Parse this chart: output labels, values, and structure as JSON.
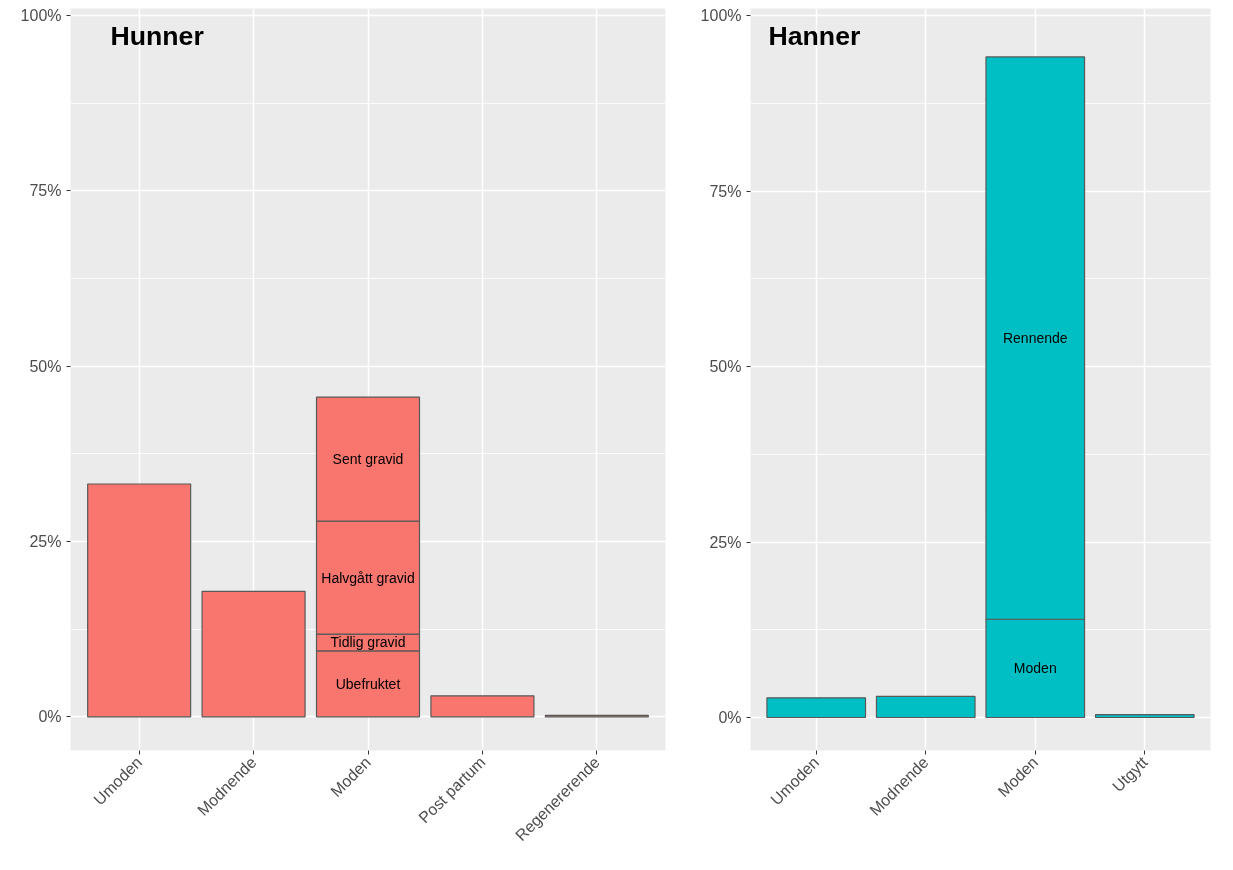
{
  "chart_data": [
    {
      "type": "bar",
      "title": "Hunner",
      "stacked": true,
      "grid": true,
      "categories": [
        "Umoden",
        "Modnende",
        "Moden",
        "Post partum",
        "Regenererende"
      ],
      "ylim": [
        -4.8,
        101
      ],
      "yticks": [
        {
          "value": 0,
          "label": "0%"
        },
        {
          "value": 25,
          "label": "25%"
        },
        {
          "value": 50,
          "label": "50%"
        },
        {
          "value": 75,
          "label": "75%"
        },
        {
          "value": 100,
          "label": "100%"
        }
      ],
      "series": [
        {
          "color": "#f8766d",
          "values": [
            33.2,
            17.9,
            null,
            3.0,
            0.2
          ]
        },
        {
          "name": "Ubefruktet",
          "color": "#f8766d",
          "values": [
            null,
            null,
            9.4,
            null,
            null
          ]
        },
        {
          "name": "Tidlig gravid",
          "color": "#f8766d",
          "values": [
            null,
            null,
            2.4,
            null,
            null
          ]
        },
        {
          "name": "Halvgått gravid",
          "color": "#f8766d",
          "values": [
            null,
            null,
            16.1,
            null,
            null
          ]
        },
        {
          "name": "Sent gravid",
          "color": "#f8766d",
          "values": [
            null,
            null,
            17.7,
            null,
            null
          ]
        }
      ]
    },
    {
      "type": "bar",
      "title": "Hanner",
      "stacked": true,
      "grid": true,
      "categories": [
        "Umoden",
        "Modnende",
        "Moden",
        "Utgytt"
      ],
      "ylim": [
        -4.7,
        101
      ],
      "yticks": [
        {
          "value": 0,
          "label": "0%"
        },
        {
          "value": 25,
          "label": "25%"
        },
        {
          "value": 50,
          "label": "50%"
        },
        {
          "value": 75,
          "label": "75%"
        },
        {
          "value": 100,
          "label": "100%"
        }
      ],
      "series": [
        {
          "color": "#00bfc4",
          "values": [
            2.8,
            3.0,
            null,
            0.4
          ]
        },
        {
          "name": "Moden",
          "color": "#00bfc4",
          "values": [
            null,
            null,
            14.0,
            null
          ]
        },
        {
          "name": "Rennende",
          "color": "#00bfc4",
          "values": [
            null,
            null,
            80.1,
            null
          ]
        }
      ]
    }
  ]
}
